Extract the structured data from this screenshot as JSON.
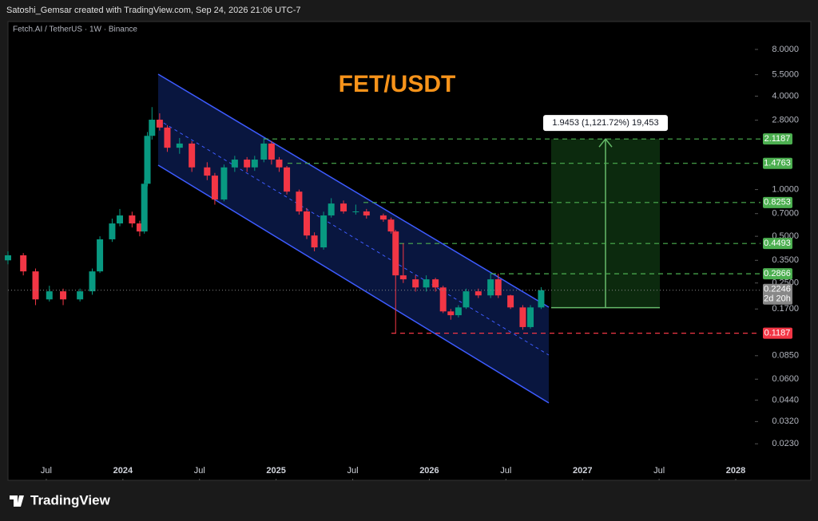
{
  "attribution": "Satoshi_Gemsar created with TradingView.com, Sep 24, 2026 21:06 UTC-7",
  "brand": "TradingView",
  "chart_data": {
    "type": "candlestick",
    "title": "FET/USDT",
    "subtitle": "Fetch.AI / TetherUS · 1W · Binance",
    "x": [
      2023.25,
      2023.35,
      2023.43,
      2023.52,
      2023.61,
      2023.72,
      2023.8,
      2023.85,
      2023.93,
      2023.98,
      2024.06,
      2024.11,
      2024.14,
      2024.16,
      2024.19,
      2024.24,
      2024.29,
      2024.37,
      2024.45,
      2024.55,
      2024.6,
      2024.66,
      2024.73,
      2024.81,
      2024.86,
      2024.92,
      2024.97,
      2025.02,
      2025.07,
      2025.15,
      2025.2,
      2025.25,
      2025.31,
      2025.36,
      2025.44,
      2025.52,
      2025.59,
      2025.7,
      2025.75,
      2025.78,
      2025.83,
      2025.91,
      2025.98,
      2026.04,
      2026.09,
      2026.14,
      2026.19,
      2026.24,
      2026.32,
      2026.4,
      2026.45,
      2026.53,
      2026.61,
      2026.66,
      2026.73
    ],
    "open": [
      0.35,
      0.377,
      0.297,
      0.196,
      0.221,
      0.196,
      0.221,
      0.297,
      0.478,
      0.605,
      0.681,
      0.605,
      0.537,
      1.09,
      2.22,
      2.82,
      2.51,
      1.86,
      1.98,
      1.39,
      1.23,
      0.863,
      1.39,
      1.56,
      1.39,
      1.56,
      1.98,
      1.56,
      1.39,
      0.97,
      0.723,
      0.506,
      0.424,
      0.681,
      0.813,
      0.723,
      0.723,
      0.681,
      0.641,
      0.537,
      0.28,
      0.264,
      0.234,
      0.264,
      0.234,
      0.164,
      0.155,
      0.174,
      0.221,
      0.208,
      0.264,
      0.208,
      0.174,
      0.13,
      0.174
    ],
    "high": [
      0.4,
      0.39,
      0.31,
      0.24,
      0.23,
      0.23,
      0.31,
      0.5,
      0.65,
      0.75,
      0.72,
      0.63,
      1.15,
      2.35,
      3.4,
      3.1,
      2.6,
      2.15,
      2.05,
      1.5,
      1.28,
      1.45,
      1.65,
      1.62,
      1.65,
      2.15,
      2.05,
      1.62,
      1.42,
      1.0,
      0.76,
      0.53,
      0.72,
      0.88,
      0.85,
      0.8,
      0.75,
      0.7,
      0.66,
      0.55,
      0.45,
      0.28,
      0.28,
      0.27,
      0.24,
      0.17,
      0.18,
      0.23,
      0.23,
      0.29,
      0.2866,
      0.21,
      0.18,
      0.18,
      0.235
    ],
    "low": [
      0.33,
      0.28,
      0.18,
      0.19,
      0.18,
      0.19,
      0.21,
      0.29,
      0.46,
      0.58,
      0.57,
      0.5,
      0.52,
      1.05,
      2.1,
      2.4,
      1.75,
      1.7,
      1.3,
      1.15,
      0.8,
      0.84,
      1.3,
      1.3,
      1.32,
      1.5,
      1.45,
      1.3,
      0.93,
      0.69,
      0.48,
      0.4,
      0.41,
      0.66,
      0.7,
      0.69,
      0.65,
      0.62,
      0.52,
      0.1187,
      0.25,
      0.22,
      0.22,
      0.22,
      0.16,
      0.145,
      0.15,
      0.17,
      0.2,
      0.2,
      0.2,
      0.17,
      0.125,
      0.127,
      0.17
    ],
    "close": [
      0.377,
      0.297,
      0.196,
      0.221,
      0.196,
      0.221,
      0.297,
      0.478,
      0.605,
      0.681,
      0.605,
      0.537,
      1.09,
      2.22,
      2.82,
      2.51,
      1.86,
      1.98,
      1.39,
      1.23,
      0.863,
      1.39,
      1.56,
      1.39,
      1.56,
      1.98,
      1.56,
      1.39,
      0.97,
      0.723,
      0.506,
      0.424,
      0.681,
      0.813,
      0.723,
      0.723,
      0.681,
      0.641,
      0.537,
      0.28,
      0.264,
      0.234,
      0.264,
      0.234,
      0.164,
      0.155,
      0.174,
      0.221,
      0.208,
      0.264,
      0.208,
      0.174,
      0.13,
      0.174,
      0.2246
    ],
    "up_color": "#089981",
    "down_color": "#f23645",
    "xlim": [
      2023.25,
      2028.125
    ],
    "xticks": [
      {
        "value": 2023.5,
        "label": "Jul"
      },
      2024,
      {
        "value": 2024.5,
        "label": "Jul"
      },
      2025,
      {
        "value": 2025.5,
        "label": "Jul"
      },
      2026,
      {
        "value": 2026.5,
        "label": "Jul"
      },
      2027,
      {
        "value": 2027.5,
        "label": "Jul"
      },
      2028
    ],
    "log_scale": true,
    "ylim": [
      0.0137,
      12.1
    ],
    "yticks": [
      {
        "value": 8,
        "label": "8.0000"
      },
      {
        "value": 5.5,
        "label": "5.5000"
      },
      {
        "value": 4,
        "label": "4.0000"
      },
      {
        "value": 2.8,
        "label": "2.8000"
      },
      {
        "value": 1,
        "label": "1.0000"
      },
      {
        "value": 0.7,
        "label": "0.7000"
      },
      {
        "value": 0.5,
        "label": "0.5000"
      },
      {
        "value": 0.35,
        "label": "0.3500"
      },
      {
        "value": 0.25,
        "label": "0.2500"
      },
      {
        "value": 0.17,
        "label": "0.1700"
      },
      {
        "value": 0.085,
        "label": "0.0850"
      },
      {
        "value": 0.06,
        "label": "0.0600"
      },
      {
        "value": 0.044,
        "label": "0.0440"
      },
      {
        "value": 0.032,
        "label": "0.0320"
      },
      {
        "value": 0.023,
        "label": "0.0230"
      }
    ],
    "levels": [
      {
        "value": 2.1187,
        "color": "#4caf50"
      },
      {
        "value": 1.4763,
        "color": "#4caf50"
      },
      {
        "value": 0.8253,
        "color": "#4caf50"
      },
      {
        "value": 0.4493,
        "color": "#4caf50"
      },
      {
        "value": 0.2866,
        "color": "#4caf50"
      },
      {
        "value": 0.1187,
        "color": "#f23645"
      }
    ],
    "measure": {
      "low": 0.1734,
      "high": 2.1187,
      "label": "1.9453 (1,121.72%) 19,453"
    },
    "countdown": "2d 20h"
  }
}
